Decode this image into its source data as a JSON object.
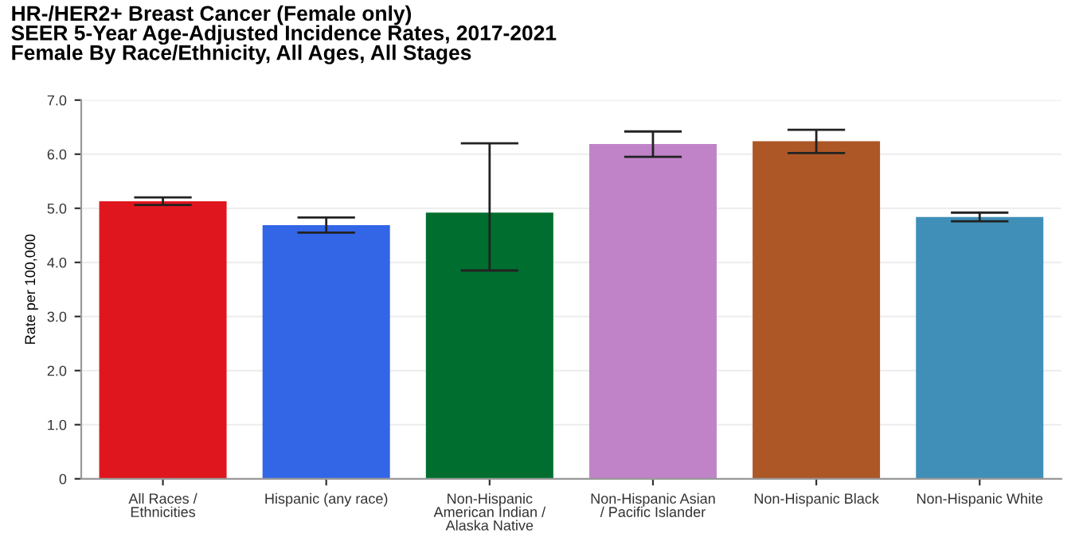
{
  "chart_data": {
    "type": "bar",
    "title": "HR-/HER2+ Breast Cancer (Female only)\nSEER 5-Year Age-Adjusted Incidence Rates, 2017-2021\nFemale By Race/Ethnicity, All Ages, All Stages",
    "ylabel": "Rate per 100,000",
    "categories": [
      "All Races /\nEthnicities",
      "Hispanic (any race)",
      "Non-Hispanic\nAmerican Indian /\nAlaska Native",
      "Non-Hispanic Asian\n/ Pacific Islander",
      "Non-Hispanic Black",
      "Non-Hispanic White"
    ],
    "values": [
      5.13,
      4.69,
      4.92,
      6.19,
      6.24,
      4.84
    ],
    "colors": [
      "#e0161e",
      "#3366e6",
      "#006e2e",
      "#c083c8",
      "#ad5727",
      "#408fb8"
    ],
    "errors": [
      [
        5.06,
        5.2
      ],
      [
        4.55,
        4.83
      ],
      [
        3.85,
        6.2
      ],
      [
        5.95,
        6.42
      ],
      [
        6.02,
        6.45
      ],
      [
        4.76,
        4.92
      ]
    ],
    "ylim": [
      0,
      7
    ],
    "yticks": [
      {
        "value": 0,
        "label": "0"
      },
      {
        "value": 1,
        "label": "1.0"
      },
      {
        "value": 2,
        "label": "2.0"
      },
      {
        "value": 3,
        "label": "3.0"
      },
      {
        "value": 4,
        "label": "4.0"
      },
      {
        "value": 5,
        "label": "5.0"
      },
      {
        "value": 6,
        "label": "6.0"
      },
      {
        "value": 7,
        "label": "7.0"
      }
    ],
    "grid": "y"
  }
}
